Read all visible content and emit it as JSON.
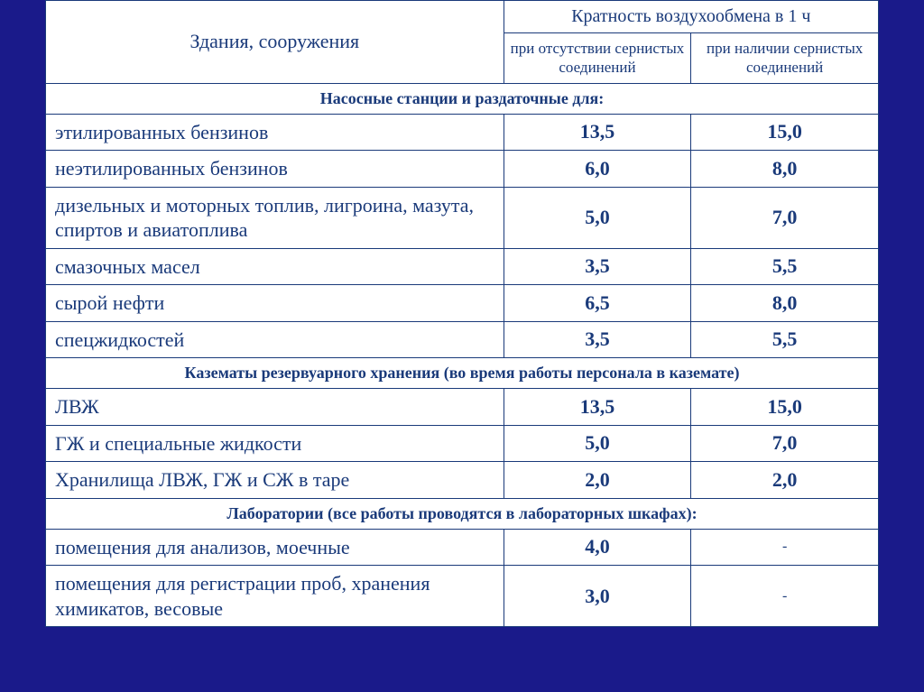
{
  "header": {
    "col0": "Здания, сооружения",
    "col_top": "Кратность воздухообмена в 1 ч",
    "col1": "при отсутствии сернистых соединений",
    "col2": "при наличии сернистых соединений"
  },
  "sections": [
    {
      "title": "Насосные станции и раздаточные для:",
      "rows": [
        {
          "label": "этилированных бензинов",
          "v1": "13,5",
          "v2": "15,0"
        },
        {
          "label": "неэтилированных бензинов",
          "v1": "6,0",
          "v2": "8,0"
        },
        {
          "label": "дизельных и моторных топлив, лигроина, мазута, спиртов и авиатоплива",
          "v1": "5,0",
          "v2": "7,0"
        },
        {
          "label": "смазочных масел",
          "v1": "3,5",
          "v2": "5,5"
        },
        {
          "label": "сырой нефти",
          "v1": "6,5",
          "v2": "8,0"
        },
        {
          "label": "спецжидкостей",
          "v1": "3,5",
          "v2": "5,5"
        }
      ]
    },
    {
      "title": "Казематы резервуарного хранения (во время работы персонала в каземате)",
      "rows": [
        {
          "label": "ЛВЖ",
          "v1": "13,5",
          "v2": "15,0"
        },
        {
          "label": "ГЖ и специальные жидкости",
          "v1": "5,0",
          "v2": "7,0"
        },
        {
          "label": "Хранилища ЛВЖ, ГЖ и  СЖ в таре",
          "v1": "2,0",
          "v2": "2,0"
        }
      ]
    },
    {
      "title": "Лаборатории (все работы проводятся в лабораторных шкафах):",
      "rows": [
        {
          "label": "помещения для анализов, моечные",
          "v1": "4,0",
          "v2": "-"
        },
        {
          "label": "помещения для регистрации проб, хранения химикатов, весовые",
          "v1": "3,0",
          "v2": "-"
        }
      ]
    }
  ],
  "style": {
    "background_color": "#1a1a8a",
    "table_bg": "#ffffff",
    "border_color": "#1a3a7a",
    "text_color": "#1a3a7a",
    "header_fontsize": 22,
    "section_fontsize": 18,
    "row_fontsize": 22,
    "subheader_fontsize": 17
  }
}
